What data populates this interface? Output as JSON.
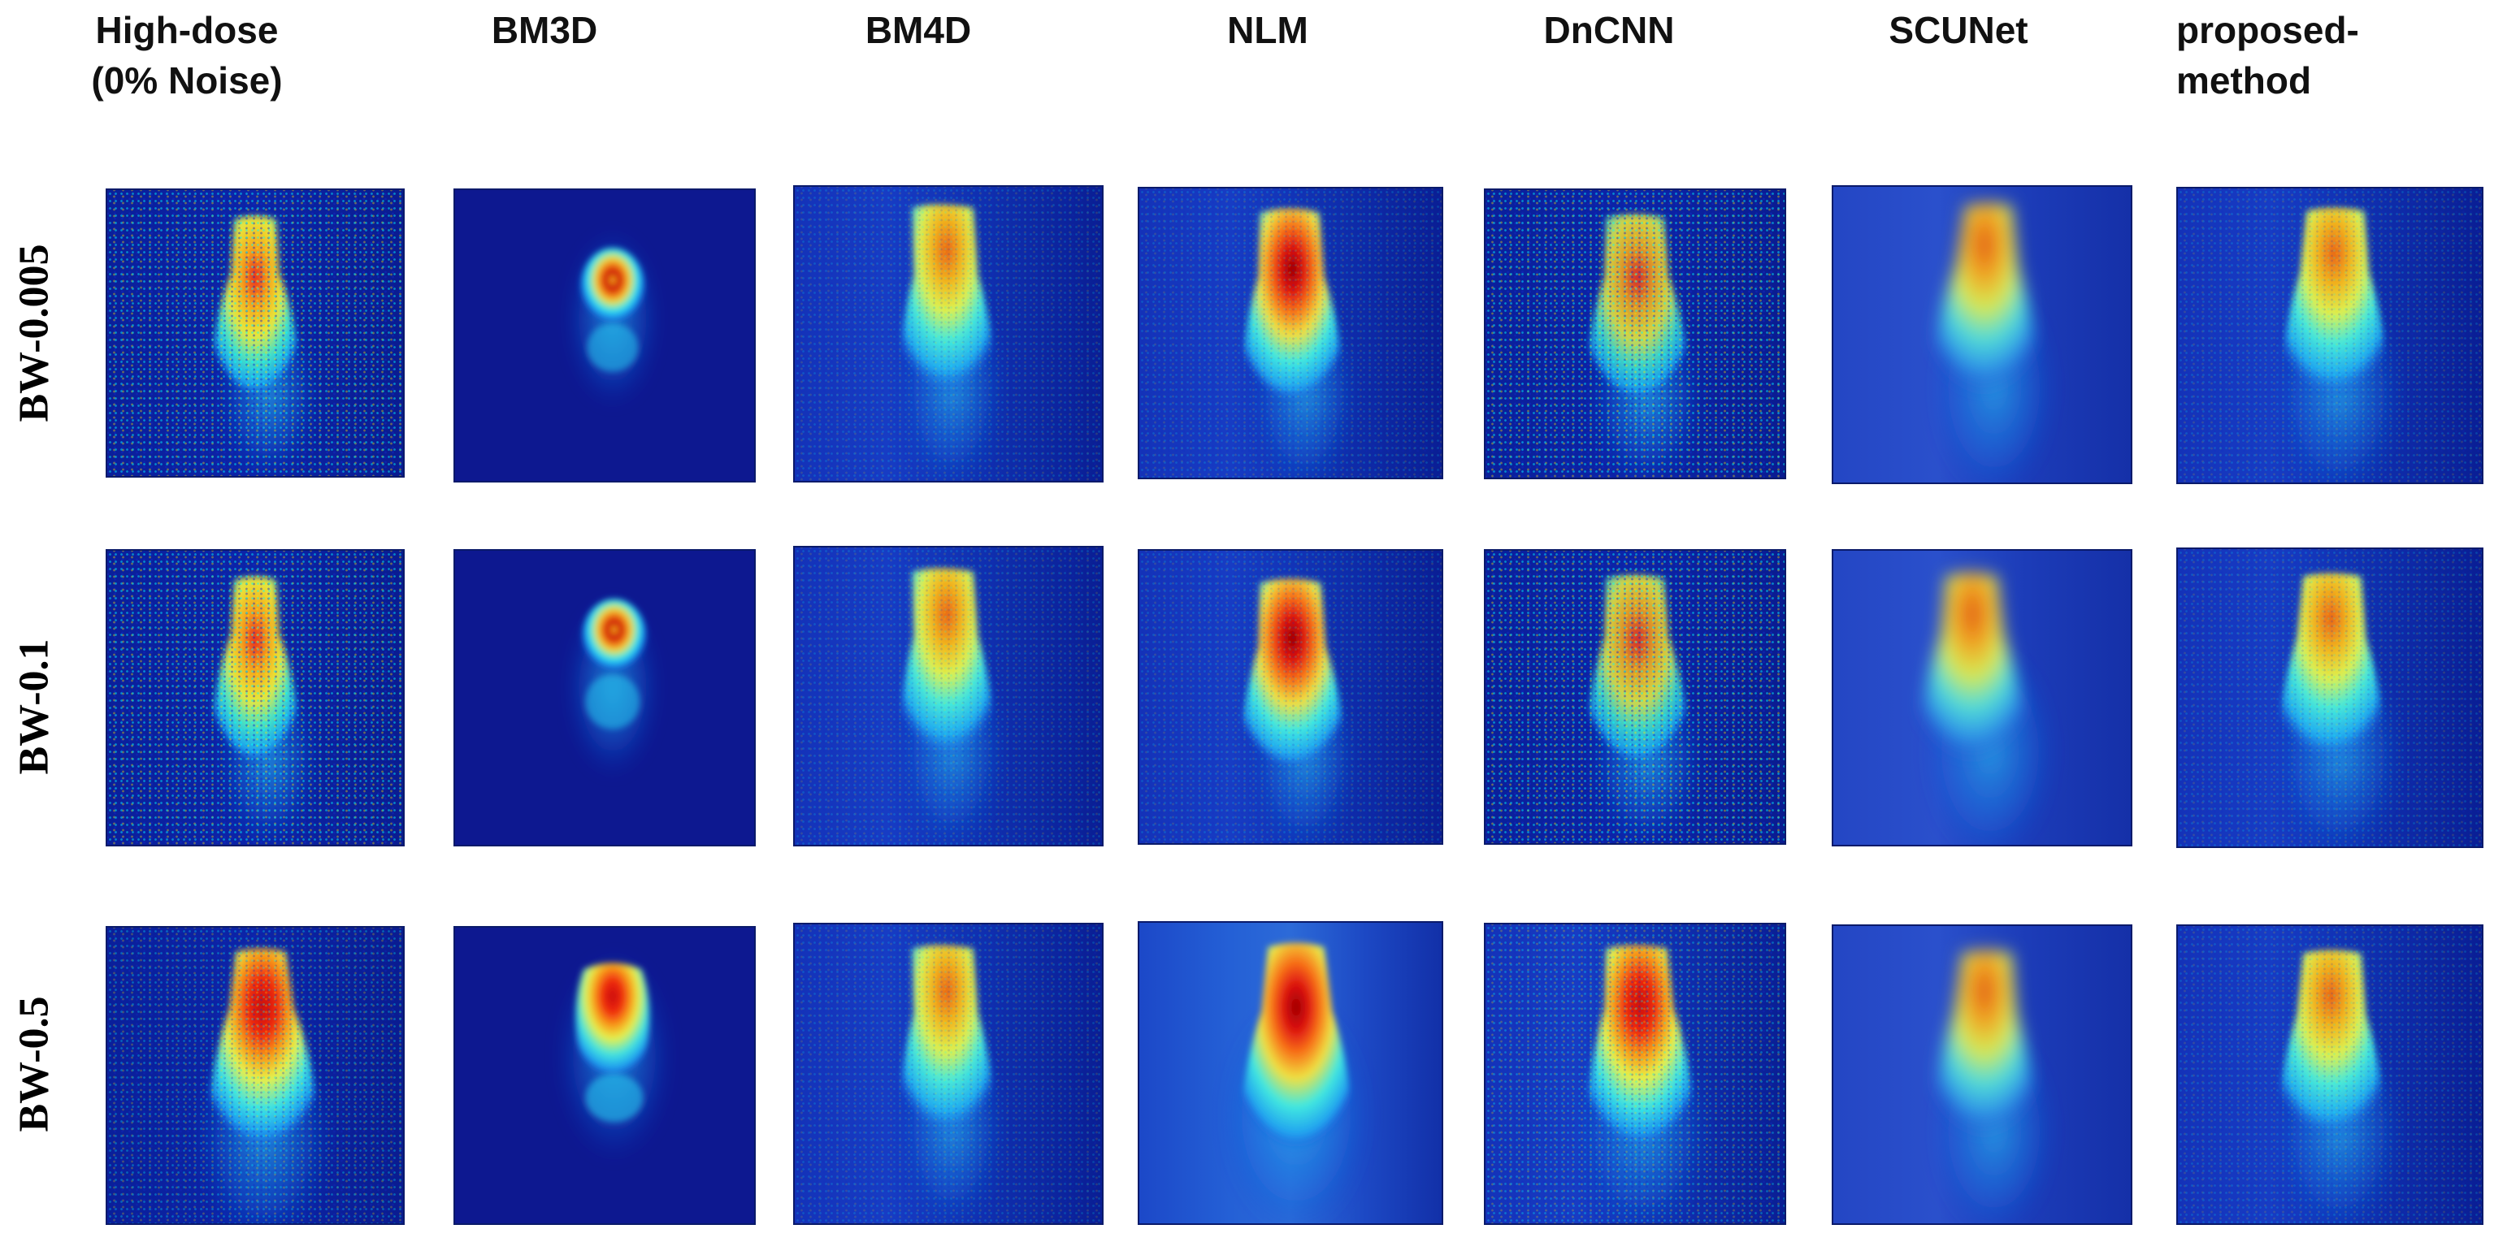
{
  "columns": [
    {
      "key": "high_dose",
      "label": "High-dose\n(0% Noise)"
    },
    {
      "key": "bm3d",
      "label": "BM3D"
    },
    {
      "key": "bm4d",
      "label": "BM4D"
    },
    {
      "key": "nlm",
      "label": "NLM"
    },
    {
      "key": "dncnn",
      "label": "DnCNN"
    },
    {
      "key": "scunet",
      "label": "SCUNet"
    },
    {
      "key": "proposed",
      "label": "proposed-\nmethod"
    }
  ],
  "rows": [
    {
      "key": "bw_0005",
      "label": "BW-0.005"
    },
    {
      "key": "bw_01",
      "label": "BW-0.1"
    },
    {
      "key": "bw_05",
      "label": "BW-0.5"
    }
  ],
  "colormap": "jet"
}
